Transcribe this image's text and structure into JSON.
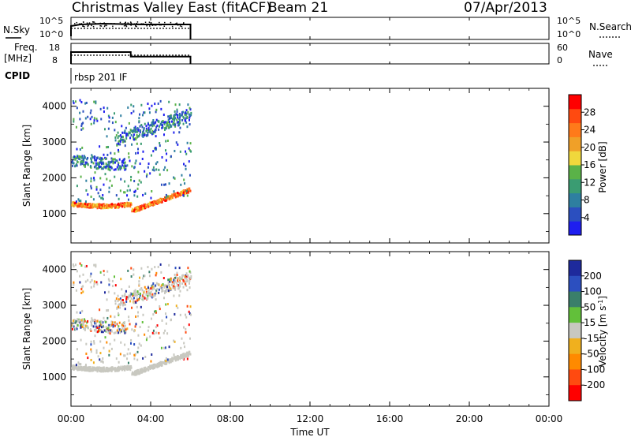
{
  "header": {
    "title": "Christmas Valley East (fitACF)",
    "beam": "Beam 21",
    "date": "07/Apr/2013"
  },
  "labels": {
    "nsky": "N.Sky",
    "nsearch": "N.Search",
    "freq_line1": "Freq.",
    "freq_line2": "[MHz]",
    "nave": "Nave",
    "cpid": "CPID",
    "cpid_value": "rbsp 201 IF",
    "xlabel": "Time UT"
  },
  "colors": {
    "frame": "#000000",
    "scatter_dense": "#c8c8c0",
    "pow_low": "#1e3cb4",
    "pow_mid": "#2f8f5f",
    "pow_high": "#ff2a00"
  },
  "chart_data": [
    {
      "type": "line",
      "name": "noise-panel",
      "yticks_left": [
        "10^5",
        "10^0"
      ],
      "yticks_right": [
        "10^5",
        "10^0"
      ],
      "series": [
        {
          "name": "N.Sky",
          "style": "solid",
          "x_hours": [
            0,
            6
          ],
          "value": "high"
        },
        {
          "name": "N.Search",
          "style": "dotted",
          "x_hours": [
            0,
            6
          ]
        }
      ]
    },
    {
      "type": "line",
      "name": "freq-nave-panel",
      "yticks_left": [
        "18",
        "8"
      ],
      "yticks_right": [
        "60",
        "0"
      ],
      "series": [
        {
          "name": "Freq.",
          "unit": "MHz",
          "style": "solid",
          "points": [
            [
              0,
              14.5
            ],
            [
              3,
              14.5
            ],
            [
              3,
              12.0
            ],
            [
              6,
              12.0
            ]
          ]
        },
        {
          "name": "Nave",
          "style": "dotted",
          "points": [
            [
              0,
              28
            ],
            [
              6,
              28
            ]
          ]
        }
      ]
    },
    {
      "type": "heatmap",
      "name": "power-panel",
      "ylabel": "Slant Range [km]",
      "yticks": [
        "1000",
        "2000",
        "3000",
        "4000"
      ],
      "ylim": [
        180,
        4500
      ],
      "xlim_hours": [
        0,
        24
      ],
      "colorbar": {
        "label": "Power [dB]",
        "ticks": [
          "28",
          "24",
          "20",
          "16",
          "12",
          "8",
          "4"
        ],
        "range": [
          0,
          32
        ],
        "colors": [
          "#1e1ef0",
          "#2b4fbf",
          "#2e7fa0",
          "#3a9c72",
          "#5ab248",
          "#f0d83c",
          "#f0a028",
          "#ff7a1a",
          "#ff4a10",
          "#ff0000"
        ]
      }
    },
    {
      "type": "heatmap",
      "name": "velocity-panel",
      "ylabel": "Slant Range [km]",
      "yticks": [
        "1000",
        "2000",
        "3000",
        "4000"
      ],
      "ylim": [
        180,
        4500
      ],
      "xlim_hours": [
        0,
        24
      ],
      "colorbar": {
        "label": "Velocity [m s^-1]",
        "ticks": [
          "200",
          "100",
          "50",
          "15",
          "-15",
          "-50",
          "-100",
          "-200"
        ],
        "colors": [
          "#1e2a9c",
          "#2c4fbf",
          "#3a7f6a",
          "#62c03a",
          "#c8c8c0",
          "#f0b01e",
          "#ff8a00",
          "#ff4a10",
          "#ff0000"
        ]
      }
    }
  ],
  "xaxis": {
    "ticks": [
      "00:00",
      "04:00",
      "08:00",
      "12:00",
      "16:00",
      "20:00",
      "00:00"
    ],
    "tick_hours": [
      0,
      4,
      8,
      12,
      16,
      20,
      24
    ]
  }
}
